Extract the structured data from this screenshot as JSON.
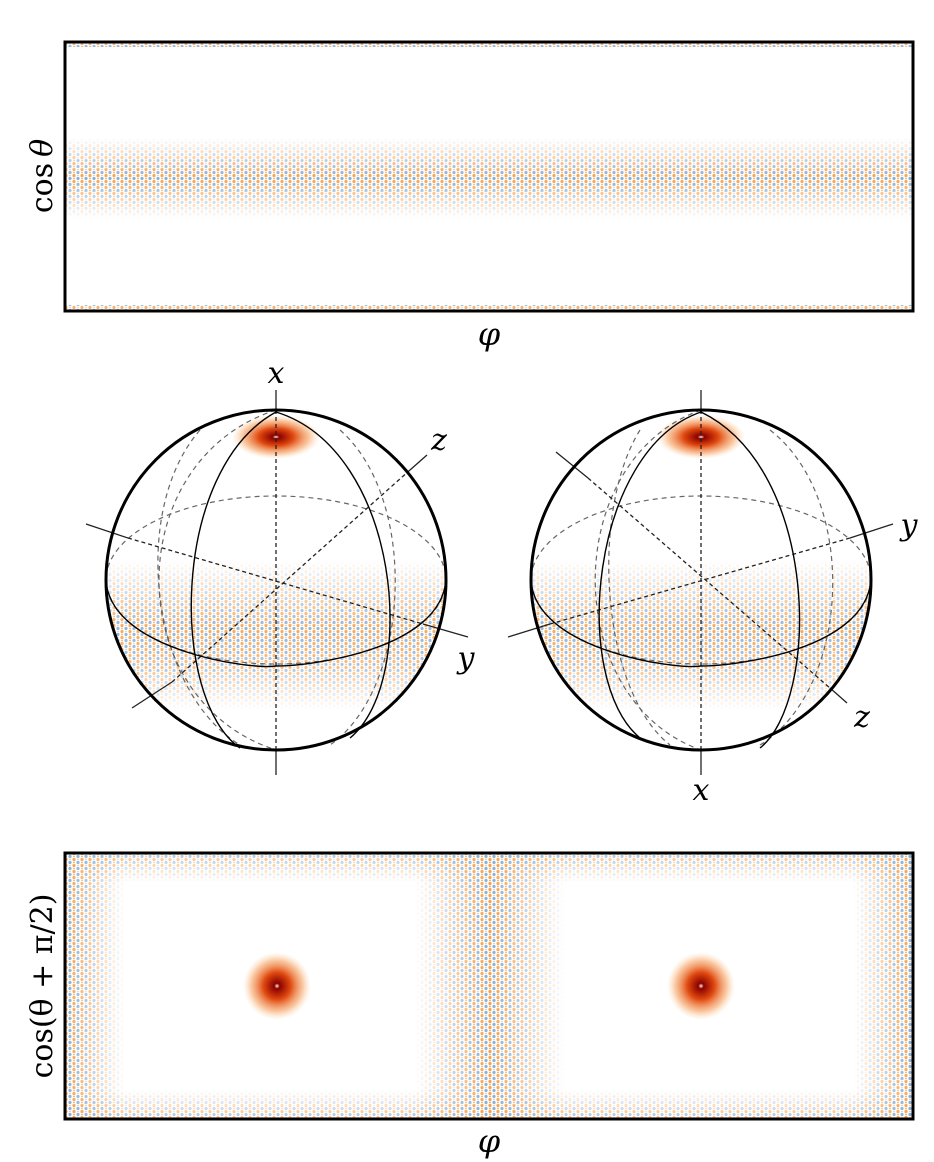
{
  "panels": {
    "top": {
      "xlabel": "φ",
      "ylabel_func": "cos",
      "ylabel_var": "θ"
    },
    "spheres": {
      "left": {
        "x_label": "x",
        "y_label": "y",
        "z_label": "z"
      },
      "right": {
        "x_label": "x",
        "y_label": "y",
        "z_label": "z"
      }
    },
    "bottom": {
      "xlabel": "φ",
      "ylabel": "cos(θ + π/2)"
    }
  },
  "colors": {
    "band_orange": "#f5a04a",
    "band_blue": "#7fb0e0",
    "spot_dark": "#8b0000",
    "spot_mid": "#e04a10",
    "spot_light": "#f6a060",
    "frame": "#000000",
    "dashed": "#666666"
  }
}
